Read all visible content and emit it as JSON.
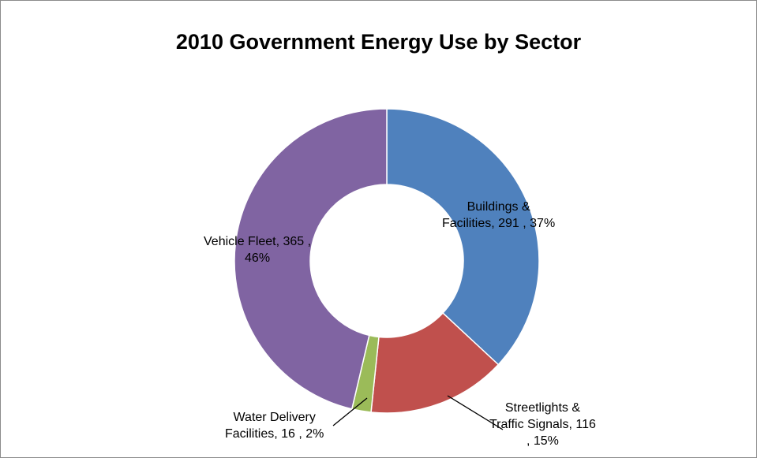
{
  "chart_data": {
    "type": "pie",
    "title": "2010 Government Energy Use by Sector",
    "categories": [
      "Buildings & Facilities",
      "Streetlights & Traffic Signals",
      "Water Delivery Facilities",
      "Vehicle Fleet"
    ],
    "values": [
      291,
      116,
      16,
      365
    ],
    "percent_labels": [
      "37%",
      "15%",
      "2%",
      "46%"
    ],
    "colors": [
      "#4f81bd",
      "#c0504d",
      "#9bbb59",
      "#8064a2"
    ],
    "donut": true,
    "legend": "none",
    "labels": [
      {
        "line1": "Buildings &",
        "line2": "Facilities,  291 , 37%"
      },
      {
        "line1": "Streetlights &",
        "line2": "Traffic Signals,  116",
        "line3": ", 15%"
      },
      {
        "line1": "Water Delivery",
        "line2": "Facilities,  16 , 2%"
      },
      {
        "line1": "Vehicle Fleet,  365 ,",
        "line2": "46%"
      }
    ]
  }
}
